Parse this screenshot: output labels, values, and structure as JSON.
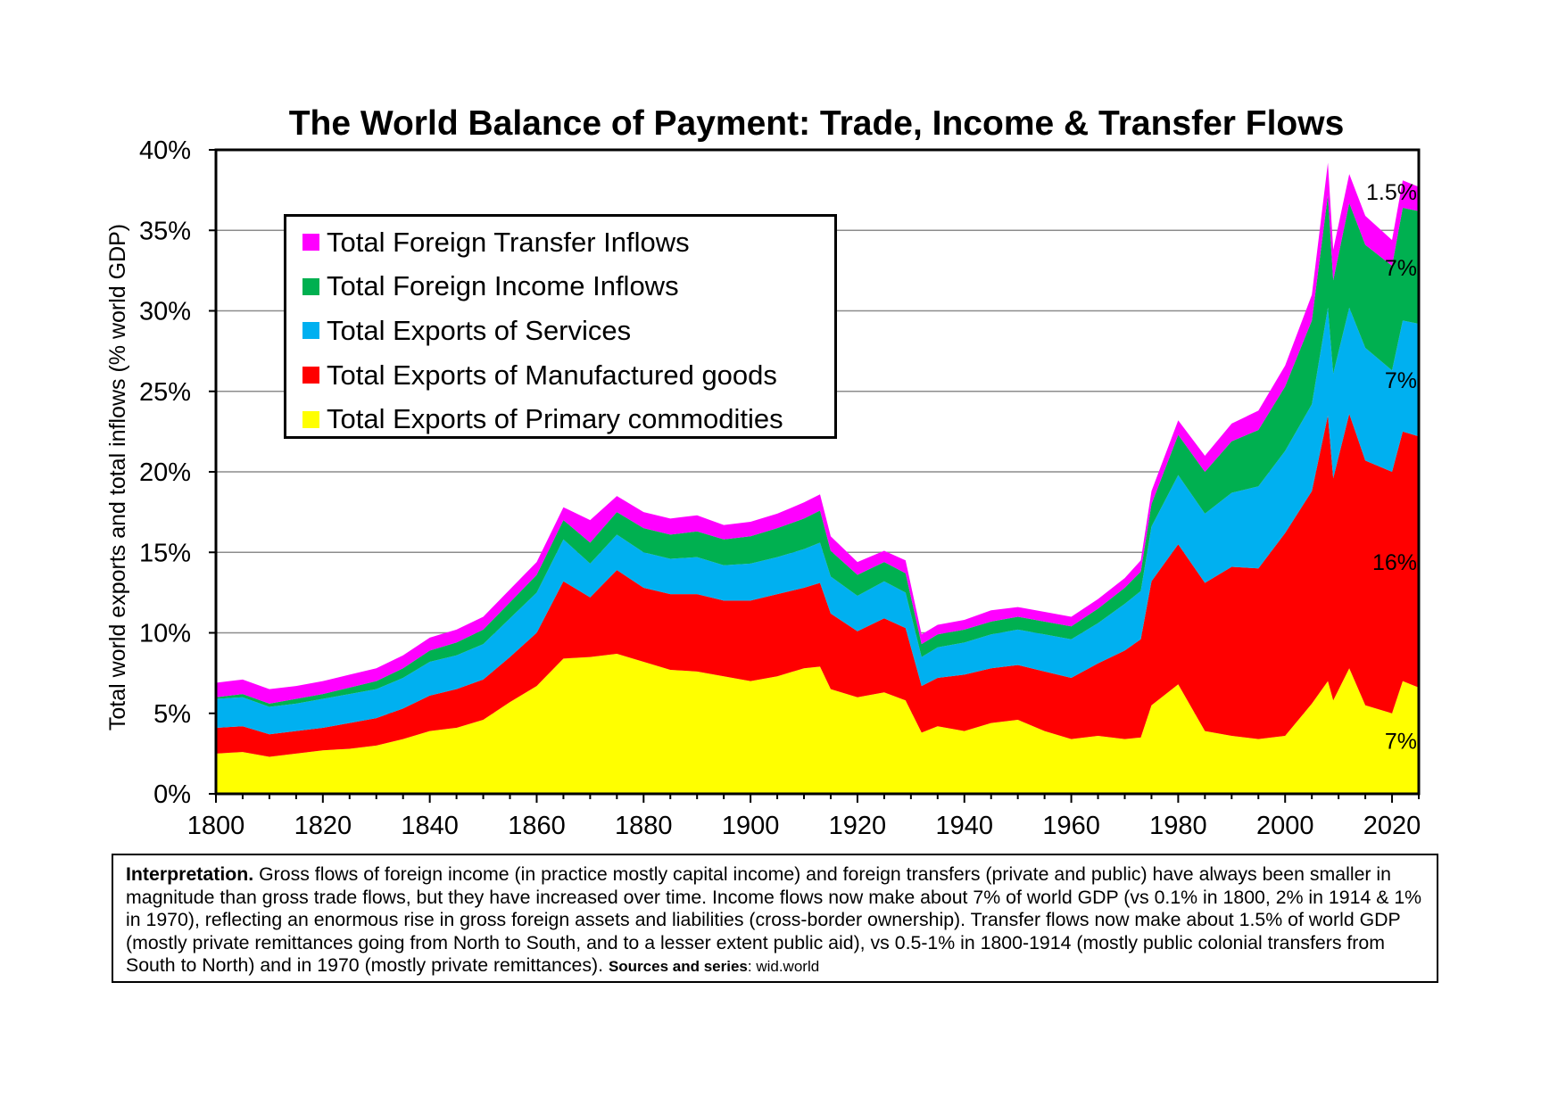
{
  "chart_data": {
    "type": "area",
    "stacked": true,
    "title": "The World Balance of Payment: Trade, Income & Transfer Flows",
    "ylabel": "Total world exports and total inflows (% world GDP)",
    "xlabel": "",
    "xlim": [
      1800,
      2025
    ],
    "ylim": [
      0,
      40
    ],
    "x_ticks": [
      "1800",
      "1820",
      "1840",
      "1860",
      "1880",
      "1900",
      "1920",
      "1940",
      "1960",
      "1980",
      "2000",
      "2020"
    ],
    "y_ticks": [
      "0%",
      "5%",
      "10%",
      "15%",
      "20%",
      "25%",
      "30%",
      "35%",
      "40%"
    ],
    "grid": "horizontal",
    "legend_position": "top-left",
    "x": [
      1800,
      1805,
      1810,
      1815,
      1820,
      1825,
      1830,
      1835,
      1840,
      1845,
      1850,
      1855,
      1860,
      1865,
      1870,
      1875,
      1880,
      1885,
      1890,
      1895,
      1900,
      1905,
      1910,
      1913,
      1915,
      1920,
      1925,
      1929,
      1932,
      1935,
      1940,
      1945,
      1950,
      1955,
      1960,
      1965,
      1970,
      1973,
      1975,
      1980,
      1985,
      1990,
      1995,
      2000,
      2005,
      2008,
      2009,
      2012,
      2015,
      2020,
      2022,
      2025
    ],
    "series": [
      {
        "name": "Total Exports of Primary commodities",
        "color": "#ffff00",
        "values": [
          2.5,
          2.6,
          2.3,
          2.5,
          2.7,
          2.8,
          3.0,
          3.4,
          3.9,
          4.1,
          4.6,
          5.7,
          6.7,
          8.4,
          8.5,
          8.7,
          8.2,
          7.7,
          7.6,
          7.3,
          7.0,
          7.3,
          7.8,
          7.9,
          6.5,
          6.0,
          6.3,
          5.8,
          3.8,
          4.2,
          3.9,
          4.4,
          4.6,
          3.9,
          3.4,
          3.6,
          3.4,
          3.5,
          5.5,
          6.8,
          3.9,
          3.6,
          3.4,
          3.6,
          5.6,
          7.0,
          5.8,
          7.8,
          5.5,
          5.0,
          7.0,
          6.6
        ]
      },
      {
        "name": "Total Exports of Manufactured goods",
        "color": "#ff0000",
        "values": [
          1.6,
          1.6,
          1.4,
          1.4,
          1.4,
          1.6,
          1.7,
          1.9,
          2.2,
          2.4,
          2.5,
          2.8,
          3.3,
          4.8,
          3.7,
          5.2,
          4.6,
          4.7,
          4.8,
          4.7,
          5.0,
          5.1,
          5.0,
          5.2,
          4.7,
          4.1,
          4.6,
          4.5,
          2.9,
          3.0,
          3.5,
          3.4,
          3.4,
          3.7,
          3.8,
          4.5,
          5.5,
          6.1,
          7.7,
          8.7,
          9.2,
          10.5,
          10.6,
          12.6,
          13.2,
          16.5,
          13.8,
          15.8,
          15.2,
          15.0,
          15.5,
          15.6
        ]
      },
      {
        "name": "Total Exports of Services",
        "color": "#00b0f0",
        "values": [
          1.8,
          1.8,
          1.7,
          1.7,
          1.8,
          1.8,
          1.8,
          1.9,
          2.1,
          2.1,
          2.2,
          2.4,
          2.5,
          2.6,
          2.1,
          2.2,
          2.2,
          2.2,
          2.3,
          2.2,
          2.3,
          2.3,
          2.4,
          2.5,
          2.3,
          2.2,
          2.3,
          2.2,
          1.8,
          1.9,
          2.0,
          2.1,
          2.2,
          2.3,
          2.4,
          2.5,
          2.9,
          3.0,
          3.4,
          4.3,
          4.3,
          4.6,
          5.1,
          5.1,
          5.4,
          6.7,
          6.5,
          6.6,
          7.0,
          6.3,
          6.9,
          7.0
        ]
      },
      {
        "name": "Total Foreign Income Inflows",
        "color": "#00b050",
        "values": [
          0.1,
          0.2,
          0.2,
          0.3,
          0.3,
          0.4,
          0.5,
          0.6,
          0.7,
          0.8,
          0.9,
          1.0,
          1.1,
          1.2,
          1.3,
          1.4,
          1.5,
          1.5,
          1.6,
          1.6,
          1.7,
          1.8,
          1.9,
          2.0,
          1.6,
          1.3,
          1.2,
          1.2,
          0.8,
          0.8,
          0.8,
          0.8,
          0.8,
          0.8,
          0.8,
          0.9,
          1.0,
          1.2,
          1.4,
          2.5,
          2.6,
          3.2,
          3.5,
          4.0,
          5.2,
          7.0,
          5.8,
          6.5,
          6.4,
          6.5,
          7.0,
          7.0
        ]
      },
      {
        "name": "Total Foreign Transfer Inflows",
        "color": "#ff00ff",
        "values": [
          0.9,
          0.9,
          0.9,
          0.8,
          0.8,
          0.8,
          0.8,
          0.8,
          0.8,
          0.8,
          0.8,
          0.8,
          0.8,
          0.8,
          1.4,
          1.0,
          1.0,
          1.0,
          1.0,
          0.9,
          0.9,
          0.9,
          1.0,
          1.0,
          0.9,
          0.8,
          0.7,
          0.8,
          0.6,
          0.6,
          0.6,
          0.7,
          0.6,
          0.6,
          0.6,
          0.6,
          0.6,
          0.7,
          0.8,
          0.9,
          1.0,
          1.1,
          1.2,
          1.3,
          1.6,
          2.0,
          1.9,
          1.8,
          1.8,
          1.6,
          1.7,
          1.5
        ]
      }
    ],
    "annotations": [
      "1.5%",
      "7%",
      "7%",
      "16%",
      "7%"
    ]
  },
  "interpretation": {
    "lead": "Interpretation.",
    "body": " Gross flows of foreign income (in practice mostly capital income) and foreign transfers (private and public) have always been smaller in magnitude than gross trade flows, but they have increased over time. Income flows now make about 7% of world GDP (vs 0.1% in 1800, 2% in 1914 & 1% in 1970), reflecting an enormous rise in gross foreign assets and liabilities (cross-border ownership). Transfer flows now make about 1.5% of world GDP (mostly private remittances going from North to South, and to a lesser extent public aid), vs 0.5-1% in 1800-1914 (mostly public colonial transfers from South to North) and in 1970 (mostly private remittances). ",
    "sources_label": "Sources and series",
    "sources_value": ": wid.world"
  }
}
